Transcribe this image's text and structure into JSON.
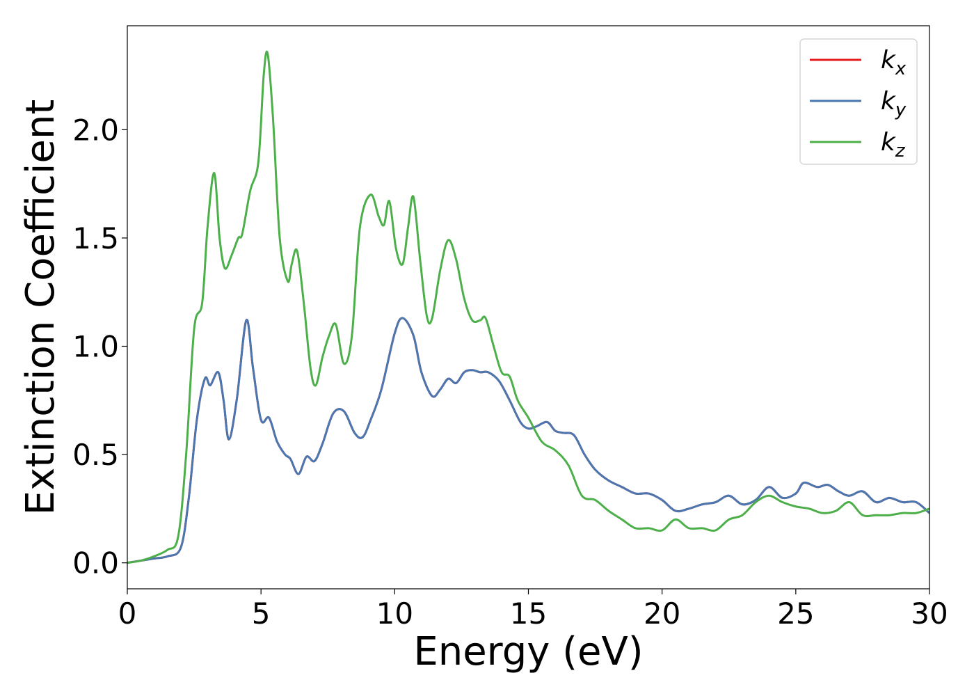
{
  "chart_data": {
    "type": "line",
    "title": "",
    "xlabel": "Energy (eV)",
    "ylabel": "Extinction Coefficient",
    "xlim": [
      0,
      30
    ],
    "ylim": [
      -0.12,
      2.48
    ],
    "xticks": [
      0,
      5,
      10,
      15,
      20,
      25,
      30
    ],
    "xtick_labels": [
      "0",
      "5",
      "10",
      "15",
      "20",
      "25",
      "30"
    ],
    "yticks": [
      0.0,
      0.5,
      1.0,
      1.5,
      2.0
    ],
    "ytick_labels": [
      "0.0",
      "0.5",
      "1.0",
      "1.5",
      "2.0"
    ],
    "grid": false,
    "legend_position": "top-right",
    "series": [
      {
        "name": "k_x",
        "legend_base": "k",
        "legend_sub": "x",
        "color": "#e41a1c",
        "x": [
          0,
          0.5,
          1,
          1.5,
          2,
          2.3,
          2.6,
          2.9,
          3.1,
          3.4,
          3.6,
          3.8,
          4.1,
          4.45,
          4.7,
          5.0,
          5.3,
          5.6,
          5.9,
          6.1,
          6.4,
          6.7,
          7.0,
          7.3,
          7.7,
          8.1,
          8.5,
          8.8,
          9.1,
          9.5,
          10.0,
          10.3,
          10.7,
          11.0,
          11.4,
          11.7,
          12.0,
          12.3,
          12.6,
          12.9,
          13.2,
          13.5,
          13.9,
          14.3,
          14.7,
          15.0,
          15.3,
          15.7,
          16.0,
          16.3,
          16.7,
          17.1,
          17.5,
          18.0,
          18.5,
          19.0,
          19.5,
          20.0,
          20.5,
          21.0,
          21.5,
          22.0,
          22.5,
          23.0,
          23.5,
          24.0,
          24.5,
          25.0,
          25.3,
          25.8,
          26.2,
          26.6,
          27.0,
          27.5,
          28.0,
          28.5,
          29.0,
          29.5,
          30.0
        ],
        "y": [
          0,
          0.01,
          0.02,
          0.03,
          0.07,
          0.3,
          0.66,
          0.85,
          0.82,
          0.88,
          0.75,
          0.57,
          0.76,
          1.12,
          0.9,
          0.66,
          0.67,
          0.56,
          0.5,
          0.48,
          0.41,
          0.49,
          0.47,
          0.55,
          0.69,
          0.7,
          0.6,
          0.58,
          0.66,
          0.8,
          1.06,
          1.13,
          1.05,
          0.88,
          0.77,
          0.8,
          0.85,
          0.83,
          0.88,
          0.89,
          0.88,
          0.88,
          0.84,
          0.75,
          0.65,
          0.62,
          0.63,
          0.65,
          0.61,
          0.6,
          0.59,
          0.5,
          0.43,
          0.38,
          0.35,
          0.32,
          0.32,
          0.29,
          0.24,
          0.25,
          0.27,
          0.28,
          0.31,
          0.27,
          0.29,
          0.35,
          0.3,
          0.32,
          0.37,
          0.35,
          0.36,
          0.33,
          0.31,
          0.33,
          0.28,
          0.3,
          0.28,
          0.28,
          0.23
        ]
      },
      {
        "name": "k_y",
        "legend_base": "k",
        "legend_sub": "y",
        "color": "#4a77b0",
        "x": [
          0,
          0.5,
          1,
          1.5,
          2,
          2.3,
          2.6,
          2.9,
          3.1,
          3.4,
          3.6,
          3.8,
          4.1,
          4.45,
          4.7,
          5.0,
          5.3,
          5.6,
          5.9,
          6.1,
          6.4,
          6.7,
          7.0,
          7.3,
          7.7,
          8.1,
          8.5,
          8.8,
          9.1,
          9.5,
          10.0,
          10.3,
          10.7,
          11.0,
          11.4,
          11.7,
          12.0,
          12.3,
          12.6,
          12.9,
          13.2,
          13.5,
          13.9,
          14.3,
          14.7,
          15.0,
          15.3,
          15.7,
          16.0,
          16.3,
          16.7,
          17.1,
          17.5,
          18.0,
          18.5,
          19.0,
          19.5,
          20.0,
          20.5,
          21.0,
          21.5,
          22.0,
          22.5,
          23.0,
          23.5,
          24.0,
          24.5,
          25.0,
          25.3,
          25.8,
          26.2,
          26.6,
          27.0,
          27.5,
          28.0,
          28.5,
          29.0,
          29.5,
          30.0
        ],
        "y": [
          0,
          0.01,
          0.02,
          0.03,
          0.07,
          0.3,
          0.66,
          0.85,
          0.82,
          0.88,
          0.75,
          0.57,
          0.76,
          1.12,
          0.9,
          0.66,
          0.67,
          0.56,
          0.5,
          0.48,
          0.41,
          0.49,
          0.47,
          0.55,
          0.69,
          0.7,
          0.6,
          0.58,
          0.66,
          0.8,
          1.06,
          1.13,
          1.05,
          0.88,
          0.77,
          0.8,
          0.85,
          0.83,
          0.88,
          0.89,
          0.88,
          0.88,
          0.84,
          0.75,
          0.65,
          0.62,
          0.63,
          0.65,
          0.61,
          0.6,
          0.59,
          0.5,
          0.43,
          0.38,
          0.35,
          0.32,
          0.32,
          0.29,
          0.24,
          0.25,
          0.27,
          0.28,
          0.31,
          0.27,
          0.29,
          0.35,
          0.3,
          0.32,
          0.37,
          0.35,
          0.36,
          0.33,
          0.31,
          0.33,
          0.28,
          0.3,
          0.28,
          0.28,
          0.23
        ]
      },
      {
        "name": "k_z",
        "legend_base": "k",
        "legend_sub": "z",
        "color": "#4daf4a",
        "x": [
          0,
          0.5,
          1,
          1.5,
          1.9,
          2.2,
          2.5,
          2.8,
          3.0,
          3.25,
          3.45,
          3.65,
          3.9,
          4.15,
          4.3,
          4.6,
          4.9,
          5.1,
          5.25,
          5.45,
          5.7,
          6.0,
          6.15,
          6.35,
          6.6,
          6.85,
          7.05,
          7.3,
          7.55,
          7.8,
          8.1,
          8.4,
          8.7,
          9.1,
          9.4,
          9.6,
          9.8,
          10.05,
          10.3,
          10.5,
          10.7,
          10.95,
          11.2,
          11.4,
          11.7,
          12.0,
          12.3,
          12.6,
          12.9,
          13.2,
          13.4,
          13.7,
          14.0,
          14.3,
          14.6,
          15.0,
          15.5,
          16.0,
          16.5,
          17.0,
          17.5,
          18.0,
          18.5,
          19.0,
          19.5,
          20.0,
          20.5,
          21.0,
          21.5,
          22.0,
          22.5,
          23.0,
          23.5,
          24.0,
          24.5,
          25.0,
          25.5,
          26.0,
          26.5,
          27.0,
          27.5,
          28.0,
          28.5,
          29.0,
          29.5,
          30.0
        ],
        "y": [
          0,
          0.01,
          0.03,
          0.06,
          0.12,
          0.5,
          1.08,
          1.2,
          1.55,
          1.8,
          1.5,
          1.36,
          1.42,
          1.5,
          1.52,
          1.72,
          1.85,
          2.25,
          2.35,
          2.05,
          1.5,
          1.3,
          1.38,
          1.44,
          1.2,
          0.9,
          0.82,
          0.95,
          1.05,
          1.1,
          0.92,
          1.05,
          1.55,
          1.7,
          1.6,
          1.56,
          1.67,
          1.45,
          1.38,
          1.55,
          1.69,
          1.4,
          1.14,
          1.13,
          1.35,
          1.49,
          1.4,
          1.22,
          1.12,
          1.12,
          1.13,
          1.0,
          0.88,
          0.86,
          0.75,
          0.67,
          0.56,
          0.52,
          0.45,
          0.31,
          0.29,
          0.24,
          0.2,
          0.16,
          0.16,
          0.15,
          0.2,
          0.16,
          0.16,
          0.15,
          0.2,
          0.22,
          0.28,
          0.31,
          0.28,
          0.26,
          0.25,
          0.23,
          0.24,
          0.28,
          0.22,
          0.22,
          0.22,
          0.23,
          0.23,
          0.25
        ]
      }
    ]
  }
}
